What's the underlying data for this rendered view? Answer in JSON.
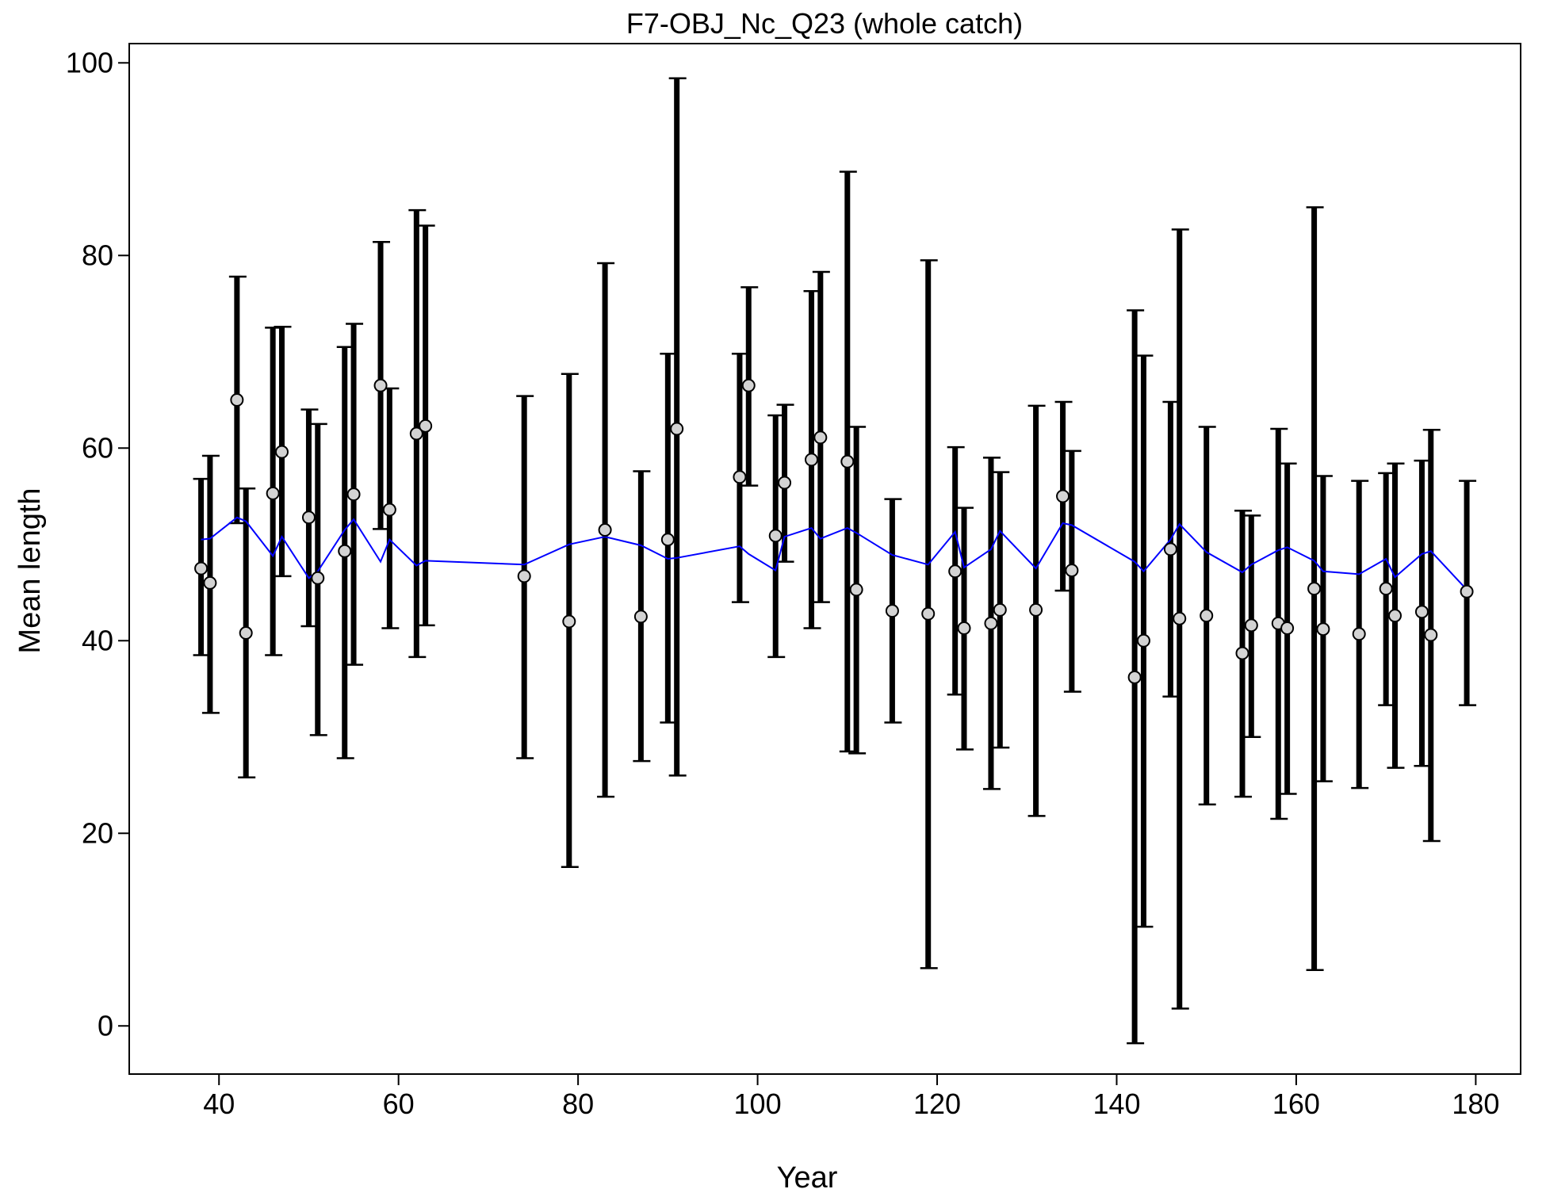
{
  "chart_data": {
    "type": "scatter",
    "title": "F7-OBJ_Nc_Q23 (whole catch)",
    "xlabel": "Year",
    "ylabel": "Mean length",
    "xlim": [
      30,
      185
    ],
    "ylim": [
      -5,
      102
    ],
    "xticks": [
      "40",
      "60",
      "80",
      "100",
      "120",
      "140",
      "160",
      "180"
    ],
    "yticks": [
      "0",
      "20",
      "40",
      "60",
      "80",
      "100"
    ],
    "grid": false,
    "legend": "none",
    "colors": {
      "points": "#d3d3d3",
      "errorbars": "#000000",
      "fit_line": "#0000ff"
    },
    "series": [
      {
        "kind": "observed",
        "x": [
          38,
          39,
          42,
          43,
          46,
          47,
          50,
          51,
          54,
          55,
          58,
          59,
          62,
          63,
          74,
          79,
          83,
          87,
          90,
          91,
          98,
          99,
          102,
          103,
          106,
          107,
          110,
          111,
          115,
          119,
          122,
          123,
          126,
          127,
          131,
          134,
          135,
          142,
          143,
          146,
          147,
          150,
          154,
          155,
          158,
          159,
          162,
          163,
          167,
          170,
          171,
          174,
          175,
          179
        ],
        "y": [
          47.5,
          46.0,
          65.0,
          40.8,
          55.3,
          59.6,
          52.8,
          46.5,
          49.3,
          55.2,
          66.5,
          53.6,
          61.5,
          62.3,
          46.7,
          42.0,
          51.5,
          42.5,
          50.5,
          62.0,
          57.0,
          66.5,
          50.9,
          56.4,
          58.8,
          61.1,
          58.6,
          45.3,
          43.1,
          42.8,
          47.2,
          41.3,
          41.8,
          43.2,
          43.2,
          55.0,
          47.3,
          36.2,
          40.0,
          49.5,
          42.3,
          42.6,
          38.7,
          41.6,
          41.8,
          41.3,
          45.4,
          41.2,
          40.7,
          45.4,
          42.6,
          43.0,
          40.6,
          45.1
        ],
        "lower": [
          38.5,
          32.5,
          52.2,
          25.8,
          38.5,
          46.7,
          41.5,
          30.2,
          27.8,
          37.5,
          51.6,
          41.3,
          38.3,
          41.6,
          27.8,
          16.5,
          23.8,
          27.5,
          31.5,
          26.0,
          44.0,
          56.1,
          38.3,
          48.2,
          41.3,
          44.0,
          28.5,
          28.3,
          31.5,
          6.0,
          34.4,
          28.7,
          24.6,
          28.9,
          21.8,
          45.2,
          34.7,
          -1.8,
          10.3,
          34.2,
          1.8,
          23.0,
          23.8,
          30.0,
          21.5,
          24.1,
          5.8,
          25.4,
          24.7,
          33.3,
          26.8,
          27.0,
          19.2,
          33.3
        ],
        "upper": [
          56.8,
          59.2,
          77.8,
          55.8,
          72.5,
          72.6,
          64.0,
          62.5,
          70.5,
          72.9,
          81.4,
          66.2,
          84.7,
          83.1,
          65.4,
          67.7,
          79.2,
          57.6,
          69.8,
          98.4,
          69.8,
          76.7,
          63.4,
          64.5,
          76.3,
          78.3,
          88.7,
          62.2,
          54.7,
          79.5,
          60.1,
          53.8,
          59.0,
          57.5,
          64.4,
          64.8,
          59.7,
          74.3,
          69.6,
          64.8,
          82.7,
          62.2,
          53.5,
          53.0,
          62.0,
          58.4,
          85.0,
          57.1,
          56.6,
          57.4,
          58.4,
          58.7,
          61.9,
          56.6
        ]
      },
      {
        "kind": "expected",
        "x": [
          38,
          39,
          42,
          43,
          46,
          47,
          50,
          51,
          54,
          55,
          58,
          59,
          62,
          63,
          74,
          79,
          83,
          87,
          90,
          91,
          98,
          99,
          102,
          103,
          106,
          107,
          110,
          111,
          115,
          119,
          122,
          123,
          126,
          127,
          131,
          134,
          135,
          142,
          143,
          146,
          147,
          150,
          154,
          155,
          158,
          159,
          162,
          163,
          167,
          170,
          171,
          174,
          175,
          179
        ],
        "y": [
          50.5,
          50.6,
          52.8,
          52.4,
          48.8,
          50.8,
          46.5,
          47.2,
          51.5,
          52.6,
          48.2,
          50.5,
          47.8,
          48.3,
          47.9,
          50.0,
          50.8,
          49.9,
          48.5,
          48.6,
          49.8,
          49.0,
          47.3,
          50.8,
          51.7,
          50.6,
          51.7,
          51.2,
          48.9,
          47.9,
          51.3,
          47.6,
          49.5,
          51.4,
          47.5,
          52.2,
          52.0,
          48.2,
          47.2,
          50.5,
          52.1,
          49.2,
          47.1,
          47.9,
          49.4,
          49.7,
          48.3,
          47.2,
          46.9,
          48.5,
          46.6,
          49.0,
          49.3,
          45.3
        ]
      }
    ]
  }
}
